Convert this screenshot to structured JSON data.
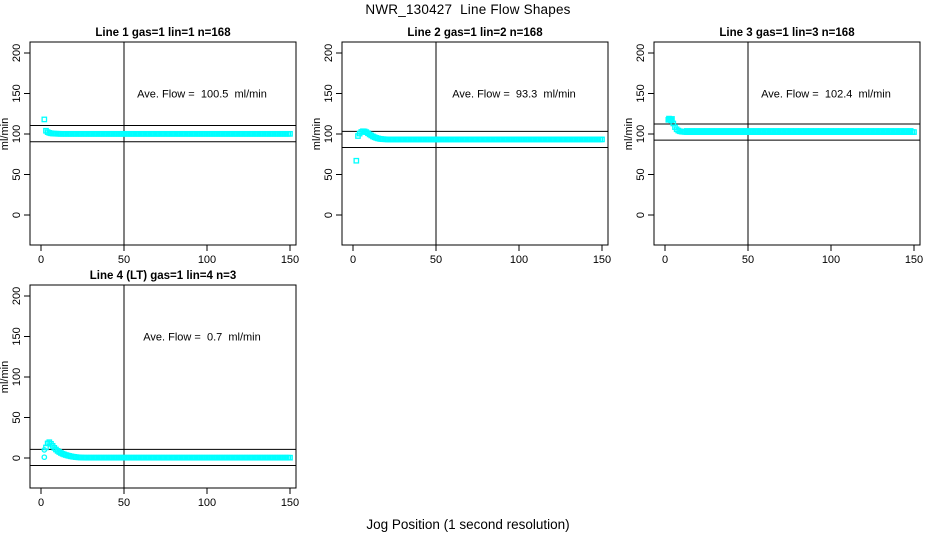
{
  "figure_title": "NWR_130427  Line Flow Shapes",
  "x_axis_label": "Jog Position (1 second resolution)",
  "colors": {
    "marker": "#00FFFF",
    "axis": "#000000",
    "background": "#FFFFFF",
    "text": "#000000"
  },
  "chart_data": [
    {
      "type": "scatter",
      "title": "Line 1 gas=1 lin=1 n=168",
      "annotation": "Ave. Flow =  100.5  ml/min",
      "ave_flow_ml_min": 100.5,
      "n_points": 168,
      "ylabel": "ml/min",
      "xticks": [
        0,
        50,
        100,
        150
      ],
      "yticks": [
        0,
        50,
        100,
        150,
        200
      ],
      "xlim": [
        0,
        150
      ],
      "ylim": [
        -37,
        214
      ],
      "vline_x": 50,
      "hlines": [
        110.5,
        90.5
      ],
      "marker": "square",
      "outlier_marker": "square",
      "outliers": [
        [
          2,
          118
        ]
      ],
      "curve": [
        [
          3,
          104
        ],
        [
          4,
          102.3
        ],
        [
          5,
          101.4
        ],
        [
          6,
          100.9
        ],
        [
          7,
          100.6
        ],
        [
          8,
          100.45
        ],
        [
          9,
          100.35
        ],
        [
          10,
          100.3
        ],
        [
          11,
          100.25
        ],
        [
          12,
          100.2
        ]
      ],
      "flat": {
        "from": 13,
        "to": 150,
        "y": 100.2
      },
      "jitter": null
    },
    {
      "type": "scatter",
      "title": "Line 2 gas=1 lin=2 n=168",
      "annotation": "Ave. Flow =  93.3  ml/min",
      "ave_flow_ml_min": 93.3,
      "n_points": 168,
      "ylabel": "ml/min",
      "xticks": [
        0,
        50,
        100,
        150
      ],
      "yticks": [
        0,
        50,
        100,
        150,
        200
      ],
      "xlim": [
        0,
        150
      ],
      "ylim": [
        -37,
        214
      ],
      "vline_x": 50,
      "hlines": [
        103.3,
        83.3
      ],
      "marker": "square",
      "outlier_marker": "square",
      "outliers": [
        [
          2,
          67
        ]
      ],
      "curve": [
        [
          3,
          97.5
        ],
        [
          4,
          100.5
        ],
        [
          5,
          102.5
        ],
        [
          6,
          103.4
        ],
        [
          7,
          103.2
        ],
        [
          8,
          102.3
        ],
        [
          9,
          101
        ],
        [
          10,
          99.5
        ],
        [
          11,
          98.2
        ],
        [
          12,
          97
        ],
        [
          13,
          96
        ],
        [
          14,
          95.2
        ],
        [
          15,
          94.6
        ],
        [
          16,
          94.1
        ],
        [
          17,
          93.8
        ],
        [
          18,
          93.6
        ],
        [
          19,
          93.5
        ],
        [
          20,
          93.4
        ]
      ],
      "flat": {
        "from": 21,
        "to": 150,
        "y": 93.3
      },
      "jitter": null
    },
    {
      "type": "scatter",
      "title": "Line 3 gas=1 lin=3 n=168",
      "annotation": "Ave. Flow =  102.4  ml/min",
      "ave_flow_ml_min": 102.4,
      "n_points": 168,
      "ylabel": "ml/min",
      "xticks": [
        0,
        50,
        100,
        150
      ],
      "yticks": [
        0,
        50,
        100,
        150,
        200
      ],
      "xlim": [
        0,
        150
      ],
      "ylim": [
        -37,
        214
      ],
      "vline_x": 50,
      "hlines": [
        112.4,
        92.4
      ],
      "marker": "square",
      "outlier_marker": "square",
      "outliers": [
        [
          2,
          117.5
        ],
        [
          2.4,
          119
        ],
        [
          3,
          118.2
        ],
        [
          3.5,
          117.2
        ],
        [
          4.2,
          118.6
        ],
        [
          4,
          116.8
        ]
      ],
      "curve": [
        [
          5,
          113
        ],
        [
          6,
          108.5
        ],
        [
          7,
          105.8
        ],
        [
          8,
          104.2
        ],
        [
          9,
          103.4
        ],
        [
          10,
          102.9
        ],
        [
          11,
          102.7
        ],
        [
          12,
          102.6
        ]
      ],
      "flat": {
        "from": 13,
        "to": 150,
        "y": 102.4
      },
      "jitter": {
        "amp": 1.4,
        "every": 3
      }
    },
    {
      "type": "scatter",
      "title": "Line 4 (LT) gas=1 lin=4 n=3",
      "annotation": "Ave. Flow =  0.7  ml/min",
      "ave_flow_ml_min": 0.7,
      "n_points": 3,
      "ylabel": "ml/min",
      "xticks": [
        0,
        50,
        100,
        150
      ],
      "yticks": [
        0,
        50,
        100,
        150,
        200
      ],
      "xlim": [
        0,
        150
      ],
      "ylim": [
        -37,
        214
      ],
      "vline_x": 50,
      "hlines": [
        10.7,
        -9.3
      ],
      "marker": "square",
      "outlier_marker": "circle",
      "outliers": [
        [
          2,
          10
        ],
        [
          2,
          1
        ]
      ],
      "curve": [
        [
          3,
          13
        ],
        [
          4,
          18
        ],
        [
          5,
          19.5
        ],
        [
          6,
          17.5
        ],
        [
          7,
          15
        ],
        [
          8,
          12.5
        ],
        [
          9,
          10.5
        ],
        [
          10,
          8.8
        ],
        [
          11,
          7.4
        ],
        [
          12,
          6.2
        ],
        [
          13,
          5.2
        ],
        [
          14,
          4.4
        ],
        [
          15,
          3.7
        ],
        [
          16,
          3.1
        ],
        [
          17,
          2.6
        ],
        [
          18,
          2.1
        ],
        [
          19,
          1.7
        ],
        [
          20,
          1.4
        ],
        [
          21,
          1.1
        ],
        [
          22,
          0.9
        ],
        [
          23,
          0.75
        ],
        [
          24,
          0.6
        ],
        [
          25,
          0.5
        ]
      ],
      "flat": {
        "from": 26,
        "to": 150,
        "y": 0.4
      },
      "jitter": null
    }
  ]
}
